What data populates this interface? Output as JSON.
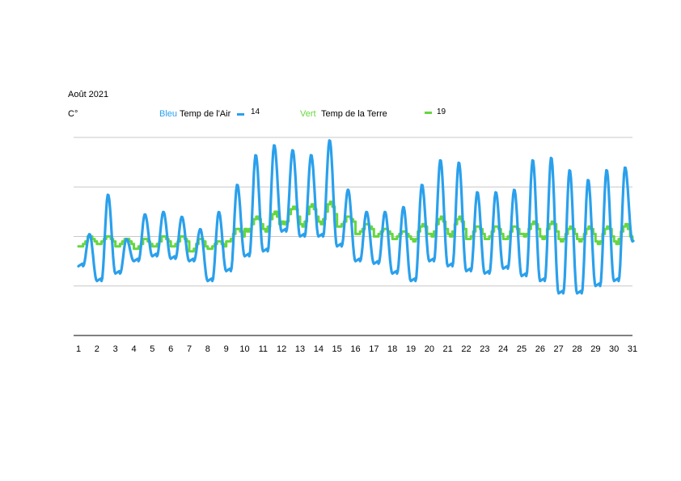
{
  "header": {
    "title": "Août  2021",
    "unit": "C°"
  },
  "legend": {
    "blue_color_word": "Bleu",
    "blue_label": "Temp de l'Air",
    "blue_number": "14",
    "green_color_word": "Vert",
    "green_label": "Temp de la Terre",
    "green_number": "19"
  },
  "colors": {
    "air": "#2aa0ec",
    "ground": "#66d63f",
    "grid": "#c8c8c8",
    "axis": "#000000"
  },
  "chart_data": {
    "type": "line",
    "title": "Août  2021",
    "ylabel": "C°",
    "xlabel": "",
    "x_tick_labels": [
      "1",
      "2",
      "3",
      "4",
      "5",
      "6",
      "7",
      "8",
      "9",
      "10",
      "11",
      "12",
      "13",
      "14",
      "15",
      "16",
      "17",
      "18",
      "19",
      "20",
      "21",
      "22",
      "23",
      "24",
      "25",
      "26",
      "27",
      "28",
      "29",
      "30",
      "31"
    ],
    "x_range": [
      1,
      31
    ],
    "ylim": [
      0,
      40
    ],
    "y_gridlines": [
      10,
      20,
      30,
      40
    ],
    "y_ticks_labeled": false,
    "legend_position": "top",
    "series": [
      {
        "name": "Temp de l'Air",
        "color_name": "Bleu",
        "style": "smooth",
        "daily_min": [
          14,
          11,
          12.5,
          15,
          16,
          15.5,
          15,
          11,
          13,
          16,
          17,
          21,
          20,
          20,
          18,
          15,
          14.5,
          12.5,
          11,
          15,
          14,
          13,
          12.5,
          13.5,
          12,
          11,
          8.5,
          8.5,
          10,
          11,
          19
        ],
        "daily_max": [
          20.5,
          28.5,
          19.5,
          24.5,
          25,
          24,
          21.5,
          25,
          30.5,
          36.5,
          38.5,
          37.5,
          36.5,
          39.5,
          29.5,
          25,
          25,
          26,
          30.5,
          35.5,
          35,
          29,
          29,
          29.5,
          35.5,
          36,
          33.5,
          31.5,
          33.5,
          34,
          35.5
        ]
      },
      {
        "name": "Temp de la Terre",
        "color_name": "Vert",
        "style": "stepped",
        "daily_min": [
          18,
          18.5,
          18,
          17.5,
          18,
          18,
          17,
          17.5,
          19,
          21,
          21,
          22.5,
          22,
          22.5,
          22,
          20.5,
          20,
          19.5,
          19,
          20,
          20,
          19.5,
          19.5,
          19.5,
          20,
          19.5,
          19,
          19,
          18.5,
          18.5,
          19
        ],
        "daily_max": [
          20,
          20,
          19.5,
          19.5,
          20,
          20,
          19.5,
          19,
          21.5,
          24,
          25,
          26,
          26.5,
          27,
          24,
          22.5,
          21.5,
          21,
          22.5,
          24,
          24,
          22,
          22,
          22,
          23,
          23,
          22,
          22,
          22,
          22.5,
          23
        ]
      }
    ]
  }
}
